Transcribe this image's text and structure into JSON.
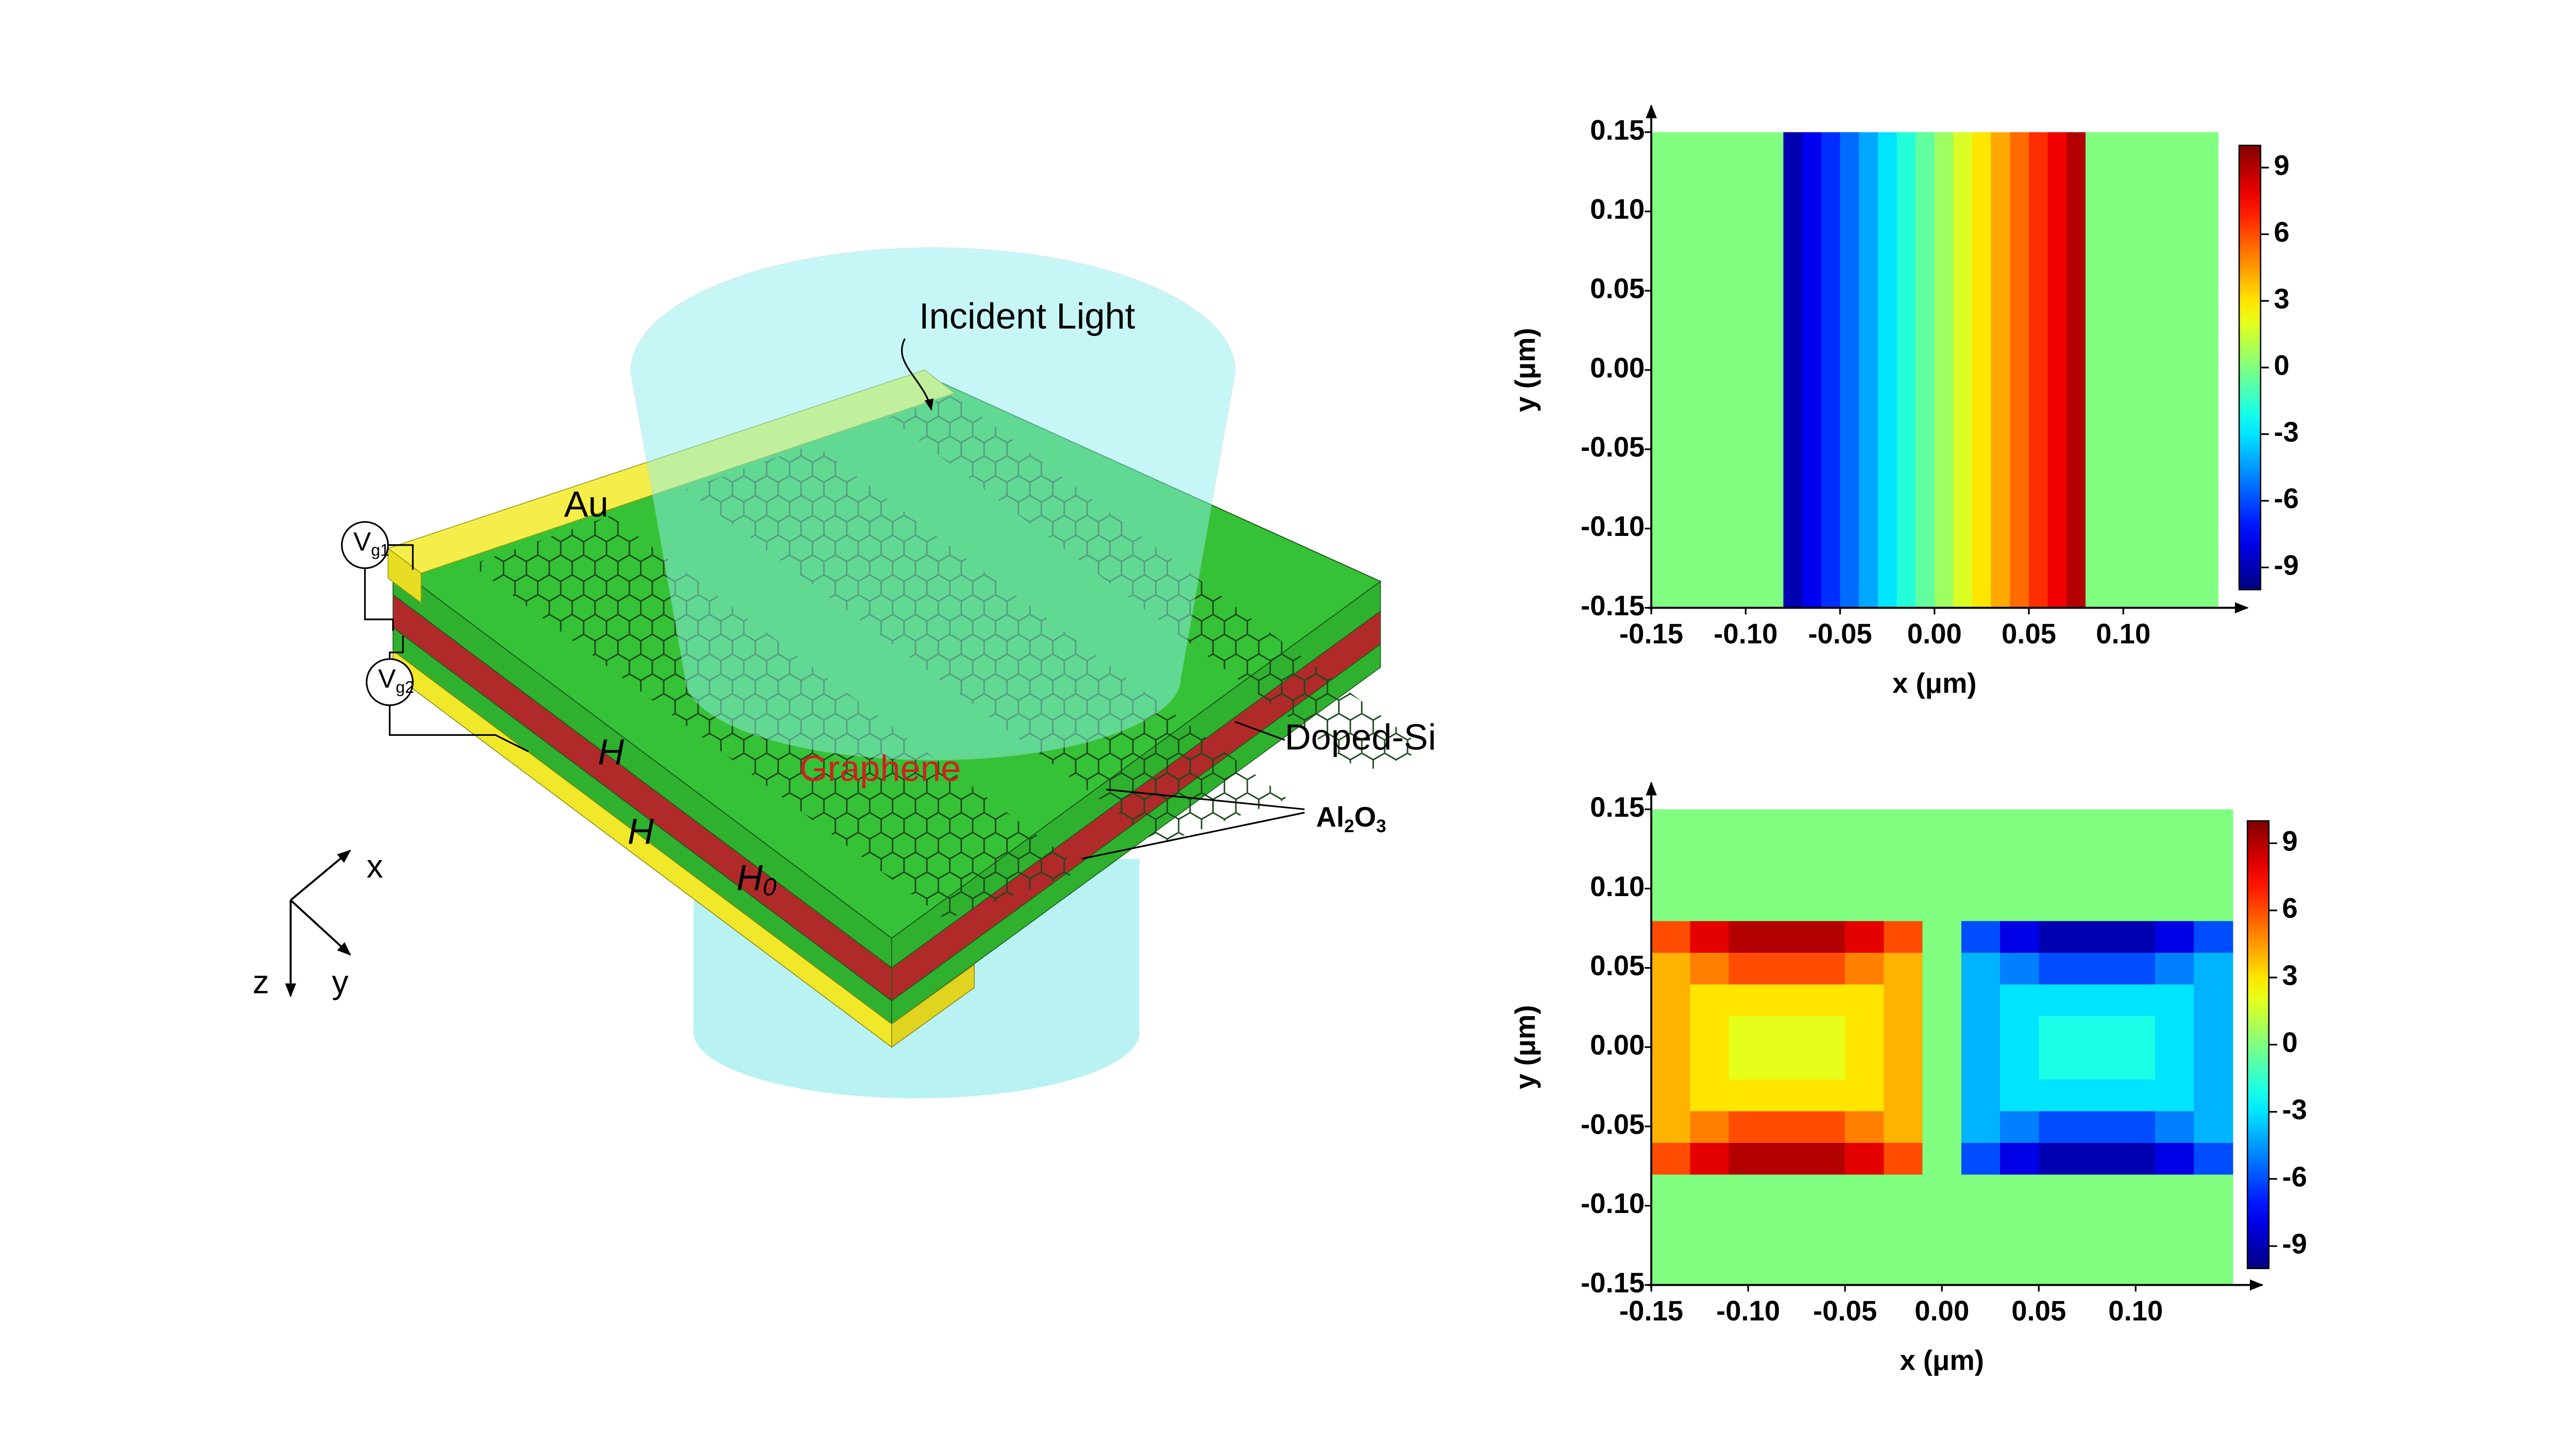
{
  "diagram": {
    "incident_light": "Incident Light",
    "au": "Au",
    "vg1": {
      "main": "V",
      "sub": "g1"
    },
    "vg2": {
      "main": "V",
      "sub": "g2"
    },
    "h_top": "H",
    "h_mid": "H",
    "h0": {
      "main": "H",
      "sub": "0"
    },
    "graphene": "Graphene",
    "doped_si": "Doped-Si",
    "al2o3": {
      "parts": [
        "Al",
        "2",
        "O",
        "3"
      ]
    },
    "axes": {
      "x": "x",
      "y": "y",
      "z": "z"
    }
  },
  "chart_data": [
    {
      "type": "heatmap",
      "xlabel": "x (μm)",
      "ylabel": "y (μm)",
      "colormap": "jet",
      "xlim": [
        -0.15,
        0.15
      ],
      "ylim": [
        -0.15,
        0.15
      ],
      "zlim": [
        -10,
        10
      ],
      "xticks": [
        -0.15,
        {
          "value": -0.1,
          "label": "-0.10"
        },
        -0.05,
        {
          "value": 0,
          "label": "0.00"
        },
        0.05,
        {
          "value": 0.1,
          "label": "0.10"
        }
      ],
      "yticks": [
        -0.15,
        {
          "value": -0.1,
          "label": "-0.10"
        },
        -0.05,
        {
          "value": 0,
          "label": "0.00"
        },
        0.05,
        {
          "value": 0.1,
          "label": "0.10"
        },
        0.15
      ],
      "zticks": [
        -9,
        -6,
        -3,
        0,
        3,
        6,
        9
      ],
      "xbins": [
        -0.15,
        -0.14,
        -0.13,
        -0.12,
        -0.11,
        -0.1,
        -0.09,
        -0.08,
        -0.07,
        -0.06,
        -0.05,
        -0.04,
        -0.03,
        -0.02,
        -0.01,
        0,
        0.01,
        0.02,
        0.03,
        0.04,
        0.05,
        0.06,
        0.07,
        0.08,
        0.09,
        0.1,
        0.11,
        0.12,
        0.13,
        0.14,
        0.15
      ],
      "ybins": [
        -0.15,
        0.15
      ],
      "z": [
        [
          0,
          0,
          0,
          0,
          0,
          0,
          0,
          -9,
          -7.8,
          -6.6,
          -5.4,
          -4.2,
          -3,
          -1.8,
          -0.6,
          0.6,
          1.8,
          3,
          4.2,
          5.4,
          6.6,
          7.8,
          9,
          0,
          0,
          0,
          0,
          0,
          0,
          0
        ]
      ]
    },
    {
      "type": "heatmap",
      "xlabel": "x (μm)",
      "ylabel": "y (μm)",
      "colormap": "jet",
      "xlim": [
        -0.15,
        0.15
      ],
      "ylim": [
        -0.15,
        0.15
      ],
      "zlim": [
        -10,
        10
      ],
      "xticks": [
        -0.15,
        {
          "value": -0.1,
          "label": "-0.10"
        },
        -0.05,
        {
          "value": 0,
          "label": "0.00"
        },
        0.05,
        {
          "value": 0.1,
          "label": "0.10"
        }
      ],
      "yticks": [
        -0.15,
        {
          "value": -0.1,
          "label": "-0.10"
        },
        -0.05,
        {
          "value": 0,
          "label": "0.00"
        },
        0.05,
        {
          "value": 0.1,
          "label": "0.10"
        },
        0.15
      ],
      "zticks": [
        -9,
        -6,
        -3,
        0,
        3,
        6,
        9
      ],
      "xbins": [
        -0.15,
        -0.13,
        -0.11,
        -0.09,
        -0.07,
        -0.05,
        -0.03,
        -0.01,
        0.01,
        0.03,
        0.05,
        0.07,
        0.09,
        0.11,
        0.13,
        0.15
      ],
      "ybins": [
        -0.15,
        -0.08,
        -0.06,
        -0.04,
        -0.02,
        0,
        0.02,
        0.04,
        0.06,
        0.08,
        0.15
      ],
      "z": [
        [
          0,
          0,
          0,
          0,
          0,
          0,
          0,
          0,
          0,
          0,
          0,
          0,
          0,
          0,
          0
        ],
        [
          6,
          8,
          9,
          9,
          9,
          8,
          6,
          0,
          -6,
          -8,
          -9,
          -9,
          -9,
          -8,
          -6
        ],
        [
          4,
          5,
          6,
          6,
          6,
          5,
          4,
          0,
          -4,
          -5,
          -6,
          -6,
          -6,
          -5,
          -4
        ],
        [
          4,
          3,
          3,
          3,
          3,
          3,
          4,
          0,
          -4,
          -3,
          -3,
          -3,
          -3,
          -3,
          -4
        ],
        [
          4,
          3,
          2,
          2,
          2,
          3,
          4,
          0,
          -4,
          -3,
          -2,
          -2,
          -2,
          -3,
          -4
        ],
        [
          4,
          3,
          2,
          2,
          2,
          3,
          4,
          0,
          -4,
          -3,
          -2,
          -2,
          -2,
          -3,
          -4
        ],
        [
          4,
          3,
          3,
          3,
          3,
          3,
          4,
          0,
          -4,
          -3,
          -3,
          -3,
          -3,
          -3,
          -4
        ],
        [
          4,
          5,
          6,
          6,
          6,
          5,
          4,
          0,
          -4,
          -5,
          -6,
          -6,
          -6,
          -5,
          -4
        ],
        [
          6,
          8,
          9,
          9,
          9,
          8,
          6,
          0,
          -6,
          -8,
          -9,
          -9,
          -9,
          -8,
          -6
        ],
        [
          0,
          0,
          0,
          0,
          0,
          0,
          0,
          0,
          0,
          0,
          0,
          0,
          0,
          0,
          0
        ]
      ]
    }
  ]
}
